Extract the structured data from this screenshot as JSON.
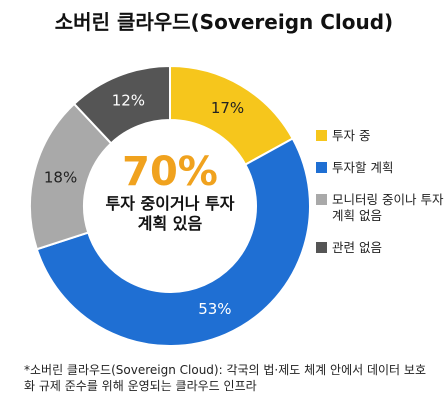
{
  "chart_data": {
    "type": "donut",
    "title": "소버린 클라우드(Sovereign Cloud)",
    "categories": [
      "투자 중",
      "투자할 계획",
      "모니터링 중이나 투자 계획 없음",
      "관련 없음"
    ],
    "values": [
      17,
      53,
      18,
      12
    ],
    "value_labels": [
      "17%",
      "53%",
      "18%",
      "12%"
    ],
    "colors": [
      "#f6c61c",
      "#1f6fd3",
      "#a9a9a9",
      "#555555"
    ],
    "center_value_label": "70%",
    "center_text": "투자 중이거나 투자 계획 있음",
    "footnote": "*소버린 클라우드(Sovereign Cloud): 각국의 법·제도 체계 안에서 데이터 보호화 규제 준수를 위해 운영되는 클라우드 인프라",
    "legend": "right"
  }
}
